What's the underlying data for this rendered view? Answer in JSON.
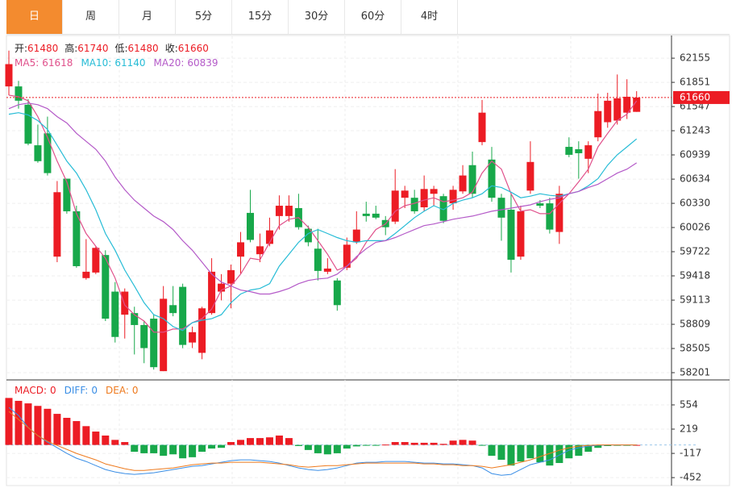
{
  "tabs": [
    "日",
    "周",
    "月",
    "5分",
    "15分",
    "30分",
    "60分",
    "4时"
  ],
  "active_tab": 0,
  "chart_data": [
    {
      "type": "candlestick",
      "info_labels": [
        "开:",
        "高:",
        "低:",
        "收:"
      ],
      "up_color": "#ec1c24",
      "down_color": "#17a84a",
      "ylim": [
        58120,
        62430
      ],
      "yticks": [
        62155,
        61851,
        61547,
        61243,
        60939,
        60634,
        60330,
        60026,
        59722,
        59418,
        59113,
        58809,
        58505,
        58201
      ],
      "grid": true,
      "last_price_line": true,
      "open": [
        61800,
        61800,
        61570,
        61060,
        61210,
        59660,
        60640,
        60230,
        59390,
        59460,
        59680,
        59220,
        58930,
        58950,
        58800,
        58880,
        58220,
        59050,
        59280,
        58580,
        58450,
        58950,
        59220,
        59320,
        59660,
        60210,
        59690,
        59820,
        60170,
        60170,
        60270,
        60010,
        59760,
        59470,
        59360,
        59520,
        59840,
        60200,
        60200,
        60120,
        60100,
        60400,
        60400,
        60280,
        60450,
        60420,
        60330,
        60480,
        60810,
        61100,
        60880,
        60400,
        60250,
        59660,
        60490,
        60330,
        60330,
        59970,
        61040,
        61010,
        60890,
        61160,
        61350,
        61370,
        61470,
        61480
      ],
      "high": [
        62250,
        61870,
        61640,
        61320,
        61420,
        60610,
        60640,
        60300,
        59880,
        59790,
        59740,
        59340,
        59260,
        59030,
        58850,
        58930,
        59290,
        59290,
        59320,
        58780,
        59030,
        59640,
        59440,
        59560,
        59970,
        60500,
        59950,
        60150,
        60430,
        60430,
        60450,
        60050,
        60010,
        59640,
        59390,
        59900,
        60230,
        60350,
        60300,
        60170,
        60760,
        60550,
        60500,
        60680,
        60550,
        60450,
        60550,
        60810,
        60980,
        61630,
        61040,
        60450,
        60450,
        60300,
        61110,
        60370,
        60400,
        60550,
        61160,
        61110,
        61110,
        61710,
        61720,
        61950,
        61890,
        61740
      ],
      "low": [
        61690,
        61520,
        61060,
        60840,
        60680,
        59590,
        60200,
        59520,
        59370,
        59440,
        58850,
        58580,
        58630,
        58430,
        58320,
        58240,
        58220,
        58910,
        58510,
        58510,
        58370,
        58930,
        59110,
        59010,
        59440,
        59840,
        59590,
        59790,
        60000,
        60100,
        60000,
        59790,
        59360,
        59440,
        58980,
        59490,
        59820,
        60100,
        60130,
        59930,
        60070,
        60270,
        60200,
        60230,
        60300,
        60080,
        60250,
        60450,
        60400,
        61060,
        60350,
        59860,
        59460,
        59620,
        60450,
        60270,
        59950,
        59820,
        60910,
        60640,
        60710,
        61110,
        61280,
        61320,
        61390,
        61480
      ],
      "close": [
        62080,
        61620,
        61080,
        60860,
        60710,
        60470,
        60230,
        59540,
        59470,
        59770,
        58880,
        58650,
        59220,
        58800,
        58510,
        58270,
        59130,
        58950,
        58550,
        58710,
        59010,
        59470,
        59320,
        59490,
        59840,
        59870,
        59790,
        59990,
        60300,
        60300,
        60030,
        59840,
        59480,
        59510,
        59050,
        59810,
        60000,
        60170,
        60150,
        60030,
        60490,
        60490,
        60230,
        60510,
        60510,
        60110,
        60500,
        60680,
        60450,
        61470,
        60400,
        60150,
        59620,
        60230,
        60850,
        60300,
        60000,
        60450,
        60940,
        60960,
        61060,
        61490,
        61620,
        61650,
        61670,
        61660
      ],
      "series": [
        {
          "name": "MA5:",
          "color": "#e0508b",
          "values": [
            61690,
            61670,
            61620,
            61420,
            61160,
            60860,
            60600,
            60200,
            59950,
            59790,
            59640,
            59390,
            59050,
            58930,
            58850,
            58710,
            58710,
            58750,
            58750,
            58830,
            58880,
            59000,
            59240,
            59290,
            59440,
            59640,
            59620,
            59840,
            60050,
            60130,
            60150,
            60030,
            59860,
            59690,
            59490,
            59540,
            59640,
            59840,
            60000,
            60070,
            60230,
            60300,
            60330,
            60370,
            60400,
            60350,
            60370,
            60400,
            60470,
            60710,
            60860,
            60760,
            60450,
            60230,
            60250,
            60200,
            60200,
            60330,
            60450,
            60600,
            60760,
            61040,
            61210,
            61370,
            61450,
            61618
          ]
        },
        {
          "name": "MA10:",
          "color": "#26bcd6",
          "values": [
            61450,
            61470,
            61440,
            61370,
            61260,
            61060,
            60860,
            60710,
            60500,
            60250,
            59950,
            59740,
            59490,
            59290,
            59080,
            58930,
            58880,
            58780,
            58730,
            58830,
            58860,
            58880,
            58930,
            59080,
            59190,
            59240,
            59260,
            59320,
            59540,
            59690,
            59840,
            59950,
            60000,
            59950,
            59900,
            59860,
            59840,
            59860,
            59860,
            59860,
            59950,
            60050,
            60150,
            60230,
            60300,
            60250,
            60330,
            60370,
            60400,
            60450,
            60550,
            60530,
            60470,
            60400,
            60420,
            60450,
            60430,
            60420,
            60450,
            60480,
            60550,
            60640,
            60810,
            60940,
            61040,
            61140
          ]
        },
        {
          "name": "MA20:",
          "color": "#b45ac8",
          "values": [
            61520,
            61570,
            61590,
            61570,
            61520,
            61420,
            61340,
            61210,
            61110,
            61010,
            60860,
            60660,
            60500,
            60370,
            60270,
            60170,
            60100,
            60000,
            59860,
            59740,
            59590,
            59440,
            59340,
            59290,
            59240,
            59220,
            59190,
            59190,
            59220,
            59260,
            59320,
            59360,
            59380,
            59390,
            59440,
            59540,
            59660,
            59760,
            59840,
            59860,
            59900,
            59950,
            60000,
            60050,
            60070,
            60100,
            60130,
            60150,
            60170,
            60200,
            60230,
            60250,
            60270,
            60290,
            60310,
            60350,
            60380,
            60400,
            60450,
            60480,
            60530,
            60570,
            60640,
            60710,
            60760,
            60839
          ]
        }
      ]
    },
    {
      "type": "macd",
      "up_color": "#ec1c24",
      "down_color": "#17a84a",
      "ylim": [
        -540,
        855
      ],
      "yticks": [
        554,
        219,
        -117,
        -452
      ],
      "grid": true,
      "series": [
        {
          "name": "MACD:",
          "color": "#ec1c24",
          "values": [
            650,
            610,
            575,
            540,
            500,
            430,
            375,
            330,
            260,
            185,
            130,
            70,
            40,
            -95,
            -115,
            -115,
            -150,
            -130,
            -185,
            -170,
            -95,
            -50,
            -40,
            40,
            70,
            95,
            95,
            105,
            130,
            95,
            -15,
            -70,
            -115,
            -130,
            -115,
            -50,
            -20,
            -5,
            -5,
            5,
            40,
            40,
            30,
            30,
            30,
            15,
            60,
            70,
            60,
            -5,
            -150,
            -205,
            -285,
            -230,
            -185,
            -240,
            -285,
            -250,
            -185,
            -150,
            -95,
            -40,
            -15,
            -5,
            -5,
            0
          ]
        },
        {
          "name": "DIFF:",
          "color": "#3a8ee6",
          "values": [
            519,
            407,
            240,
            128,
            39,
            -39,
            -117,
            -184,
            -229,
            -285,
            -340,
            -374,
            -396,
            -407,
            -396,
            -385,
            -363,
            -340,
            -318,
            -296,
            -285,
            -262,
            -240,
            -218,
            -206,
            -206,
            -218,
            -229,
            -251,
            -285,
            -318,
            -340,
            -352,
            -340,
            -318,
            -285,
            -251,
            -240,
            -240,
            -229,
            -229,
            -229,
            -240,
            -251,
            -251,
            -262,
            -262,
            -273,
            -285,
            -318,
            -396,
            -419,
            -407,
            -340,
            -273,
            -240,
            -206,
            -140,
            -73,
            -39,
            -17,
            -5,
            0,
            0,
            0,
            0
          ]
        },
        {
          "name": "DEA:",
          "color": "#ee7a1e",
          "values": [
            463,
            352,
            240,
            128,
            50,
            -6,
            -61,
            -117,
            -162,
            -206,
            -262,
            -296,
            -329,
            -352,
            -352,
            -340,
            -329,
            -318,
            -296,
            -273,
            -262,
            -251,
            -251,
            -240,
            -240,
            -240,
            -240,
            -251,
            -262,
            -273,
            -296,
            -307,
            -296,
            -285,
            -285,
            -273,
            -262,
            -251,
            -251,
            -251,
            -251,
            -251,
            -251,
            -262,
            -262,
            -273,
            -273,
            -285,
            -285,
            -296,
            -318,
            -296,
            -273,
            -240,
            -206,
            -162,
            -117,
            -73,
            -39,
            -17,
            -6,
            0,
            0,
            0,
            0,
            0
          ]
        }
      ]
    }
  ]
}
